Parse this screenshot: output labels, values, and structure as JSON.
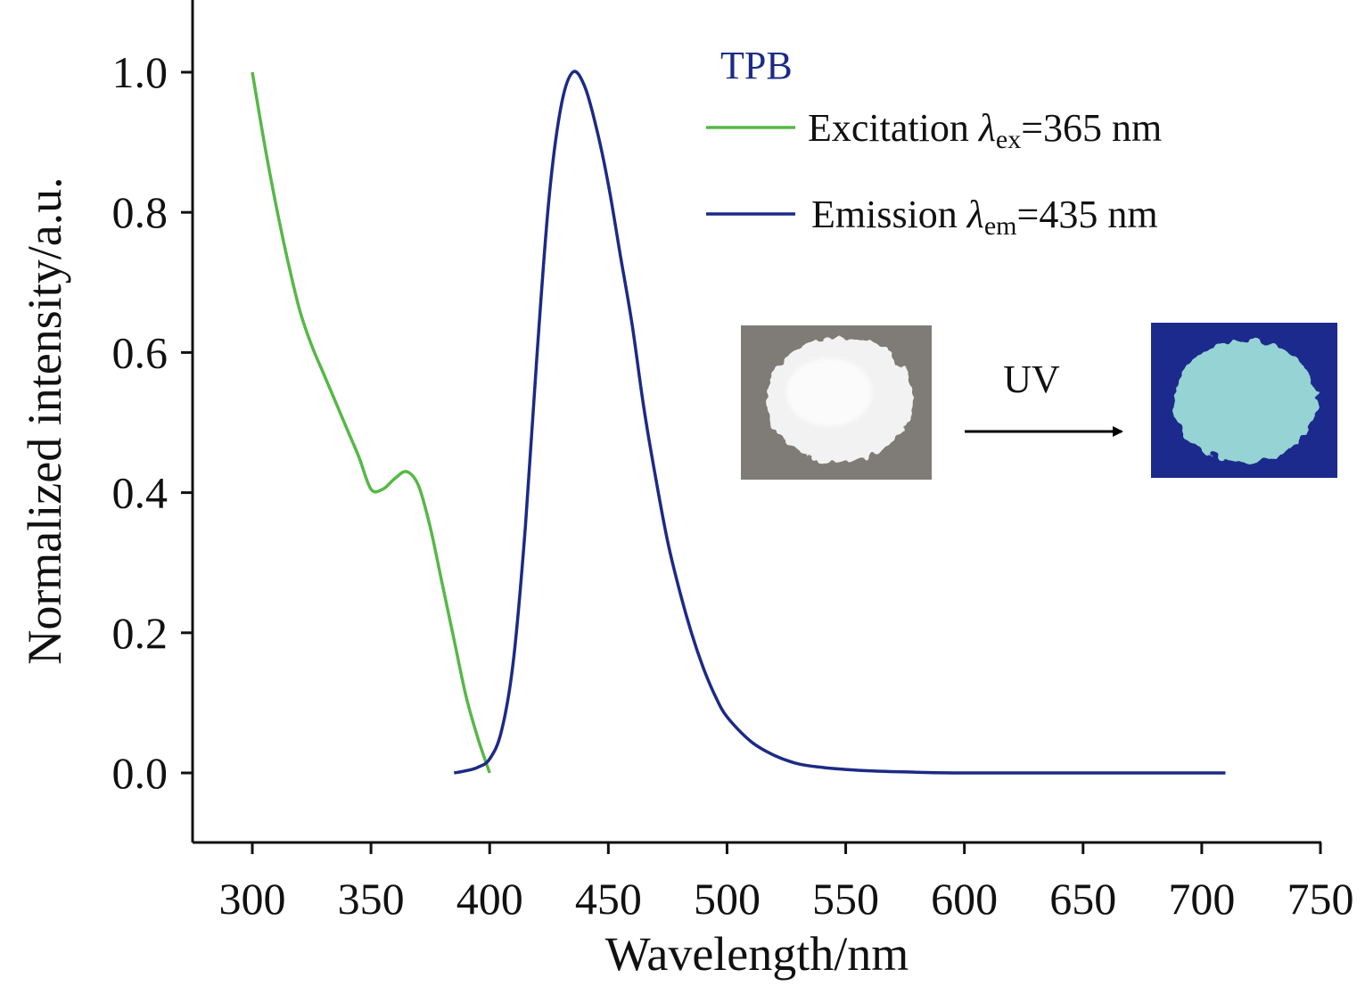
{
  "chart_data": {
    "type": "line",
    "xlabel": "Wavelength/nm",
    "ylabel": "Normalized intensity/a.u.",
    "xlim": [
      275,
      750
    ],
    "ylim": [
      -0.1,
      1.1
    ],
    "x_ticks": [
      "300",
      "350",
      "400",
      "450",
      "500",
      "550",
      "600",
      "650",
      "700",
      "750"
    ],
    "y_ticks": [
      "0.0",
      "0.2",
      "0.4",
      "0.6",
      "0.8",
      "1.0"
    ],
    "grid": false,
    "legend": {
      "title": "TPB",
      "position": "top-right",
      "entries": [
        {
          "prefix": "Excitation ",
          "symbol": "λ",
          "sub": "ex",
          "suffix": "=365 nm"
        },
        {
          "prefix": "Emission ",
          "symbol": "λ",
          "sub": "em",
          "suffix": "=435 nm"
        }
      ]
    },
    "series": [
      {
        "key": "excitation",
        "color": "#56b847",
        "x": [
          300,
          305,
          310,
          315,
          320,
          325,
          330,
          335,
          340,
          345,
          350,
          355,
          360,
          365,
          370,
          375,
          380,
          385,
          390,
          395,
          400
        ],
        "y": [
          1.0,
          0.9,
          0.81,
          0.73,
          0.66,
          0.61,
          0.57,
          0.53,
          0.49,
          0.45,
          0.405,
          0.405,
          0.42,
          0.43,
          0.41,
          0.35,
          0.27,
          0.19,
          0.11,
          0.05,
          0.0
        ]
      },
      {
        "key": "emission",
        "color": "#1c2a86",
        "x": [
          385,
          390,
          395,
          400,
          405,
          410,
          415,
          420,
          425,
          430,
          435,
          440,
          445,
          450,
          455,
          460,
          465,
          470,
          475,
          480,
          485,
          490,
          495,
          500,
          510,
          520,
          530,
          540,
          550,
          560,
          580,
          600,
          650,
          710
        ],
        "y": [
          0.0,
          0.003,
          0.008,
          0.02,
          0.06,
          0.16,
          0.35,
          0.6,
          0.82,
          0.95,
          1.0,
          0.98,
          0.92,
          0.84,
          0.74,
          0.64,
          0.52,
          0.42,
          0.33,
          0.26,
          0.2,
          0.15,
          0.11,
          0.08,
          0.045,
          0.025,
          0.013,
          0.008,
          0.005,
          0.003,
          0.001,
          0.0,
          0.0,
          0.0
        ]
      }
    ]
  },
  "inset": {
    "arrow_label": "UV",
    "before_image": "white-powder-photo",
    "after_image": "fluorescent-powder-photo",
    "colors": {
      "before_bg": "#7f7c77",
      "before_powder": "#f2f2f2",
      "after_bg": "#1b2a8c",
      "after_powder": "#96d3d4"
    }
  }
}
